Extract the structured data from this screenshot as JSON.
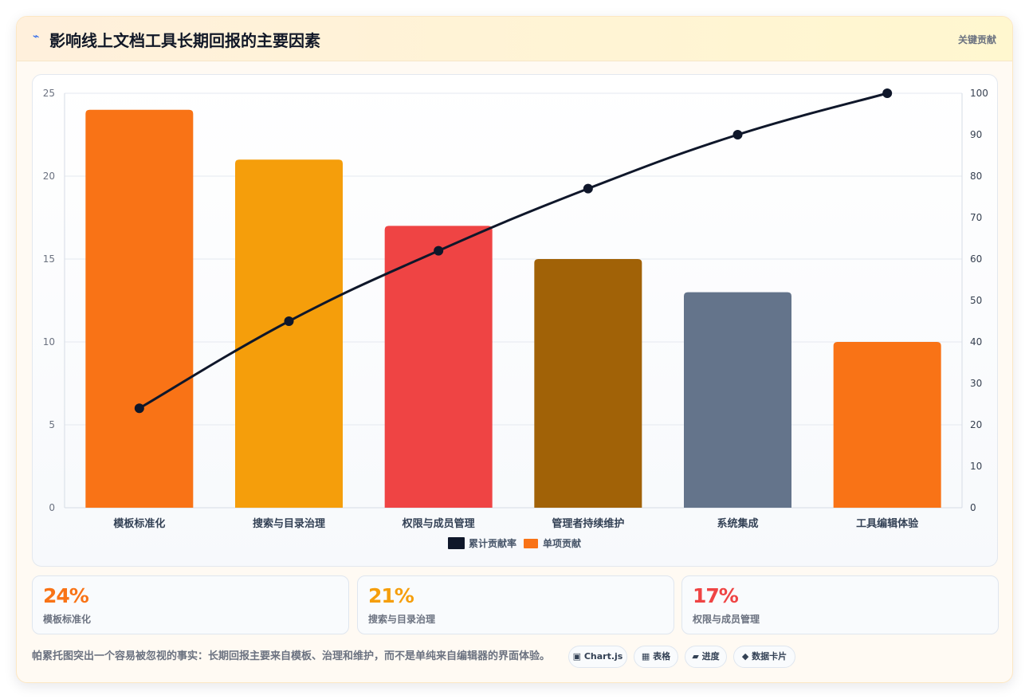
{
  "header": {
    "icon": "bolt-icon",
    "title": "影响线上文档工具长期回报的主要因素",
    "tag": "关键贡献"
  },
  "colors": {
    "orange": "#f97316",
    "amber": "#f59e0b",
    "red": "#ef4444",
    "brown": "#a16207",
    "slate": "#64748b",
    "line": "#0f172a"
  },
  "chart_data": {
    "type": "bar",
    "categories": [
      "模板标准化",
      "搜索与目录治理",
      "权限与成员管理",
      "管理者持续维护",
      "系统集成",
      "工具编辑体验"
    ],
    "series": [
      {
        "name": "单项贡献",
        "type": "bar",
        "axis": "left",
        "values": [
          24,
          21,
          17,
          15,
          13,
          10
        ],
        "colors": [
          "#f97316",
          "#f59e0b",
          "#ef4444",
          "#a16207",
          "#64748b",
          "#f97316"
        ]
      },
      {
        "name": "累计贡献率",
        "type": "line",
        "axis": "right",
        "values": [
          24,
          45,
          62,
          77,
          90,
          100
        ],
        "color": "#0f172a"
      }
    ],
    "ylim": [
      0,
      25
    ],
    "yticks": [
      0,
      5,
      10,
      15,
      20,
      25
    ],
    "y2lim": [
      0,
      100
    ],
    "y2ticks": [
      0,
      10,
      20,
      30,
      40,
      50,
      60,
      70,
      80,
      90,
      100
    ],
    "legend_position": "bottom",
    "grid": true
  },
  "stats": [
    {
      "value": "24%",
      "label": "模板标准化",
      "color": "#f97316"
    },
    {
      "value": "21%",
      "label": "搜索与目录治理",
      "color": "#f59e0b"
    },
    {
      "value": "17%",
      "label": "权限与成员管理",
      "color": "#ef4444"
    }
  ],
  "footer": {
    "note": "帕累托图突出一个容易被忽视的事实：长期回报主要来自模板、治理和维护，而不是单纯来自编辑器的界面体验。",
    "chips": [
      {
        "icon": "chart-icon",
        "label": "▣ Chart.js"
      },
      {
        "icon": "table-icon",
        "label": "▦ 表格"
      },
      {
        "icon": "progress-icon",
        "label": "▰ 进度"
      },
      {
        "icon": "card-icon",
        "label": "◆ 数据卡片"
      }
    ]
  }
}
